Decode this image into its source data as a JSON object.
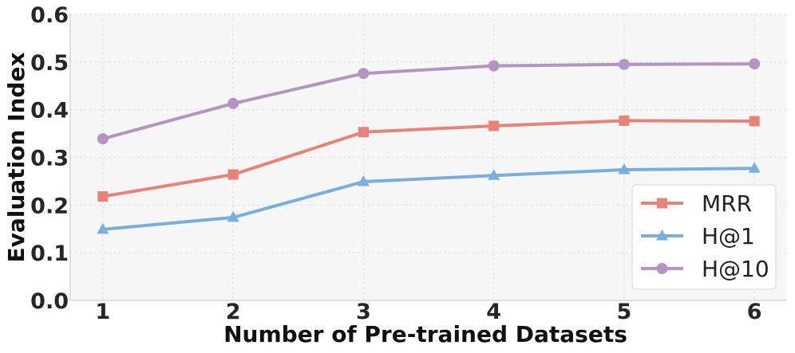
{
  "chart_data": {
    "type": "line",
    "title": "",
    "xlabel": "Number of Pre-trained Datasets",
    "ylabel": "Evaluation Index",
    "x": [
      1,
      2,
      3,
      4,
      5,
      6
    ],
    "xticks": [
      "1",
      "2",
      "3",
      "4",
      "5",
      "6"
    ],
    "yticks": [
      "0.0",
      "0.1",
      "0.2",
      "0.3",
      "0.4",
      "0.5",
      "0.6"
    ],
    "ylim": [
      0.0,
      0.6
    ],
    "xlim": [
      0.75,
      6.25
    ],
    "grid": true,
    "legend_position": "lower-right",
    "series": [
      {
        "name": "MRR",
        "marker": "square",
        "color": "#e8837a",
        "values": [
          0.218,
          0.264,
          0.353,
          0.366,
          0.377,
          0.376
        ]
      },
      {
        "name": "H@1",
        "marker": "triangle",
        "color": "#7aaedc",
        "values": [
          0.149,
          0.174,
          0.249,
          0.262,
          0.274,
          0.277
        ]
      },
      {
        "name": "H@10",
        "marker": "circle",
        "color": "#b495c2",
        "values": [
          0.339,
          0.413,
          0.476,
          0.492,
          0.495,
          0.496
        ]
      }
    ]
  }
}
